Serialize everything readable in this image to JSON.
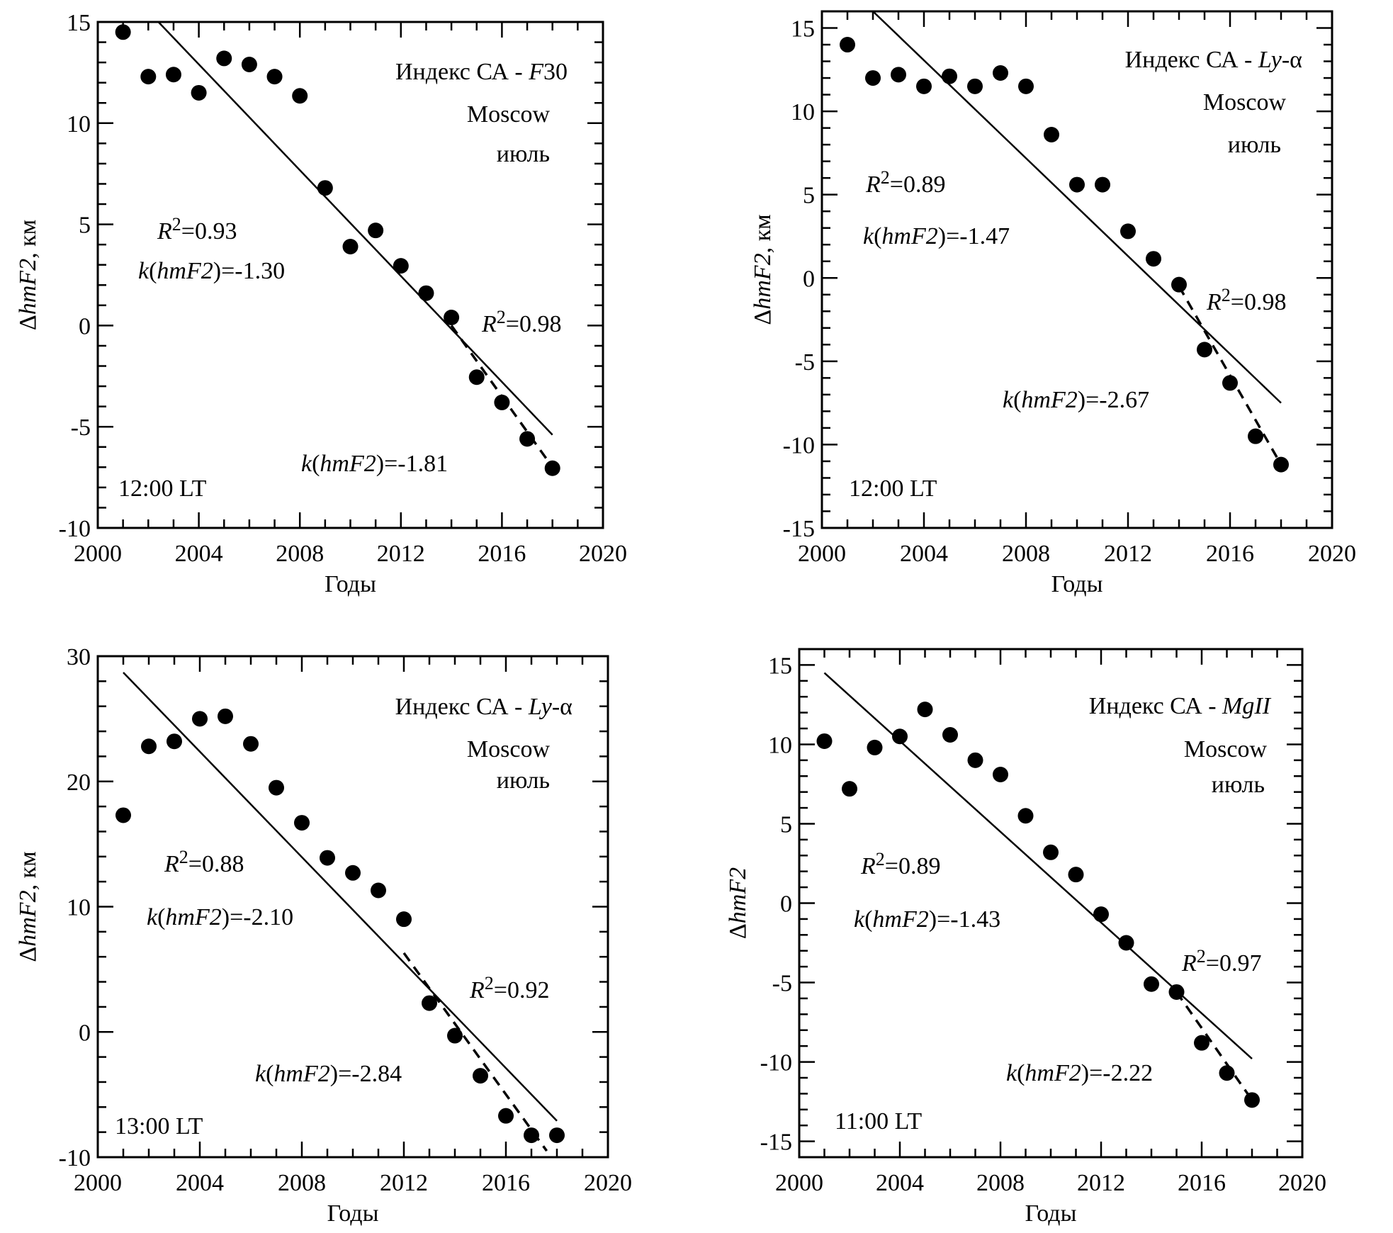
{
  "chart_data": [
    {
      "id": "panel-f30-12lt",
      "type": "scatter",
      "title": "Индекс СА - F30",
      "title_parts": {
        "prefix": "Индекс СА - ",
        "index": "F",
        "index_suffix": "30"
      },
      "station": "Moscow",
      "month": "июль",
      "time_label": "12:00 LT",
      "xlabel": "Годы",
      "ylabel": {
        "delta": "Δ",
        "var": "hmF2",
        "unit": ", км"
      },
      "xlim": [
        2000,
        2020
      ],
      "ylim": [
        -10,
        15
      ],
      "xticks": [
        2000,
        2004,
        2008,
        2012,
        2016,
        2020
      ],
      "yticks": [
        -10,
        -5,
        0,
        5,
        10,
        15
      ],
      "x": [
        2001,
        2002,
        2003,
        2004,
        2005,
        2006,
        2007,
        2008,
        2009,
        2010,
        2011,
        2012,
        2013,
        2014,
        2015,
        2016,
        2017,
        2018
      ],
      "y": [
        14.5,
        12.3,
        12.4,
        11.5,
        13.2,
        12.9,
        12.3,
        11.35,
        6.8,
        3.9,
        4.7,
        2.95,
        1.6,
        0.4,
        -2.55,
        -3.8,
        -5.6,
        -7.05
      ],
      "fit_all": {
        "x": [
          2002.4,
          2018
        ],
        "y": [
          15,
          -5.4
        ],
        "r2": "0.93",
        "k": "-1.30"
      },
      "fit_recent": {
        "x": [
          2014,
          2018
        ],
        "y": [
          0.0,
          -7.0
        ],
        "r2": "0.98",
        "k": "-1.81"
      }
    },
    {
      "id": "panel-lya-12lt",
      "type": "scatter",
      "title": "Индекс СА - Ly-α",
      "title_parts": {
        "prefix": "Индекс СА - ",
        "index": "Ly",
        "index_suffix": "-α"
      },
      "station": "Moscow",
      "month": "июль",
      "time_label": "12:00 LT",
      "xlabel": "Годы",
      "ylabel": {
        "delta": "Δ",
        "var": "hmF2",
        "unit": ", км"
      },
      "xlim": [
        2000,
        2020
      ],
      "ylim": [
        -15,
        16
      ],
      "xticks": [
        2000,
        2004,
        2008,
        2012,
        2016,
        2020
      ],
      "yticks": [
        -15,
        -10,
        -5,
        0,
        5,
        10,
        15
      ],
      "x": [
        2001,
        2002,
        2003,
        2004,
        2005,
        2006,
        2007,
        2008,
        2009,
        2010,
        2011,
        2012,
        2013,
        2014,
        2015,
        2016,
        2017,
        2018
      ],
      "y": [
        14.0,
        12.0,
        12.2,
        11.5,
        12.1,
        11.5,
        12.3,
        11.5,
        8.6,
        5.6,
        5.6,
        2.8,
        1.15,
        -0.4,
        -4.3,
        -6.3,
        -9.5,
        -11.2
      ],
      "fit_all": {
        "x": [
          2002,
          2018
        ],
        "y": [
          16,
          -7.5
        ],
        "r2": "0.89",
        "k": "-1.47"
      },
      "fit_recent": {
        "x": [
          2014,
          2018
        ],
        "y": [
          -0.5,
          -11.2
        ],
        "r2": "0.98",
        "k": "-2.67"
      }
    },
    {
      "id": "panel-lya-13lt",
      "type": "scatter",
      "title": "Индекс СА - Ly-α",
      "title_parts": {
        "prefix": "Индекс СА - ",
        "index": "Ly",
        "index_suffix": "-α"
      },
      "station": "Moscow",
      "month": "июль",
      "time_label": "13:00 LT",
      "xlabel": "Годы",
      "ylabel": {
        "delta": "Δ",
        "var": "hmF2",
        "unit": ", км"
      },
      "xlim": [
        2000,
        2020
      ],
      "ylim": [
        -10,
        30
      ],
      "xticks": [
        2000,
        2004,
        2008,
        2012,
        2016,
        2020
      ],
      "yticks": [
        -10,
        0,
        10,
        20,
        30
      ],
      "x": [
        2001,
        2002,
        2003,
        2004,
        2005,
        2006,
        2007,
        2008,
        2009,
        2010,
        2011,
        2012,
        2013,
        2014,
        2015,
        2016,
        2017,
        2018
      ],
      "y": [
        17.3,
        22.8,
        23.2,
        25.0,
        25.2,
        23.0,
        19.5,
        16.7,
        13.9,
        12.7,
        11.3,
        9.0,
        2.3,
        -0.3,
        -3.5,
        -6.7,
        -8.25,
        -8.25
      ],
      "fit_all": {
        "x": [
          2001,
          2018
        ],
        "y": [
          28.7,
          -7.1
        ],
        "r2": "0.88",
        "k": "-2.10"
      },
      "fit_recent": {
        "x": [
          2012,
          2017.6
        ],
        "y": [
          6.3,
          -9.5
        ],
        "r2": "0.92",
        "k": "-2.84"
      }
    },
    {
      "id": "panel-mgii-11lt",
      "type": "scatter",
      "title": "Индекс СА - MgII",
      "title_parts": {
        "prefix": "Индекс СА - ",
        "index": "MgII",
        "index_suffix": ""
      },
      "station": "Moscow",
      "month": "июль",
      "time_label": "11:00 LT",
      "xlabel": "Годы",
      "ylabel": {
        "delta": "Δ",
        "var": "hmF2",
        "unit": ""
      },
      "xlim": [
        2000,
        2020
      ],
      "ylim": [
        -16,
        16
      ],
      "xticks": [
        2000,
        2004,
        2008,
        2012,
        2016,
        2020
      ],
      "yticks": [
        -15,
        -10,
        -5,
        0,
        5,
        10,
        15
      ],
      "x": [
        2001,
        2002,
        2003,
        2004,
        2005,
        2006,
        2007,
        2008,
        2009,
        2010,
        2011,
        2012,
        2013,
        2014,
        2015,
        2016,
        2017,
        2018
      ],
      "y": [
        10.2,
        7.2,
        9.8,
        10.5,
        12.2,
        10.6,
        9.0,
        8.1,
        5.5,
        3.2,
        1.8,
        -0.7,
        -2.5,
        -5.1,
        -5.6,
        -8.8,
        -10.7,
        -12.4
      ],
      "fit_all": {
        "x": [
          2001,
          2018
        ],
        "y": [
          14.5,
          -9.8
        ],
        "r2": "0.89",
        "k": "-1.43"
      },
      "fit_recent": {
        "x": [
          2015,
          2018
        ],
        "y": [
          -5.6,
          -12.4
        ],
        "r2": "0.97",
        "k": "-2.22"
      }
    }
  ],
  "labels": {
    "r2_prefix": "R",
    "r2_sup": "2",
    "r2_eq": "=",
    "k_prefix": "k",
    "k_open": "(",
    "k_var": "hmF2",
    "k_close": ")=",
    "grid": false
  }
}
